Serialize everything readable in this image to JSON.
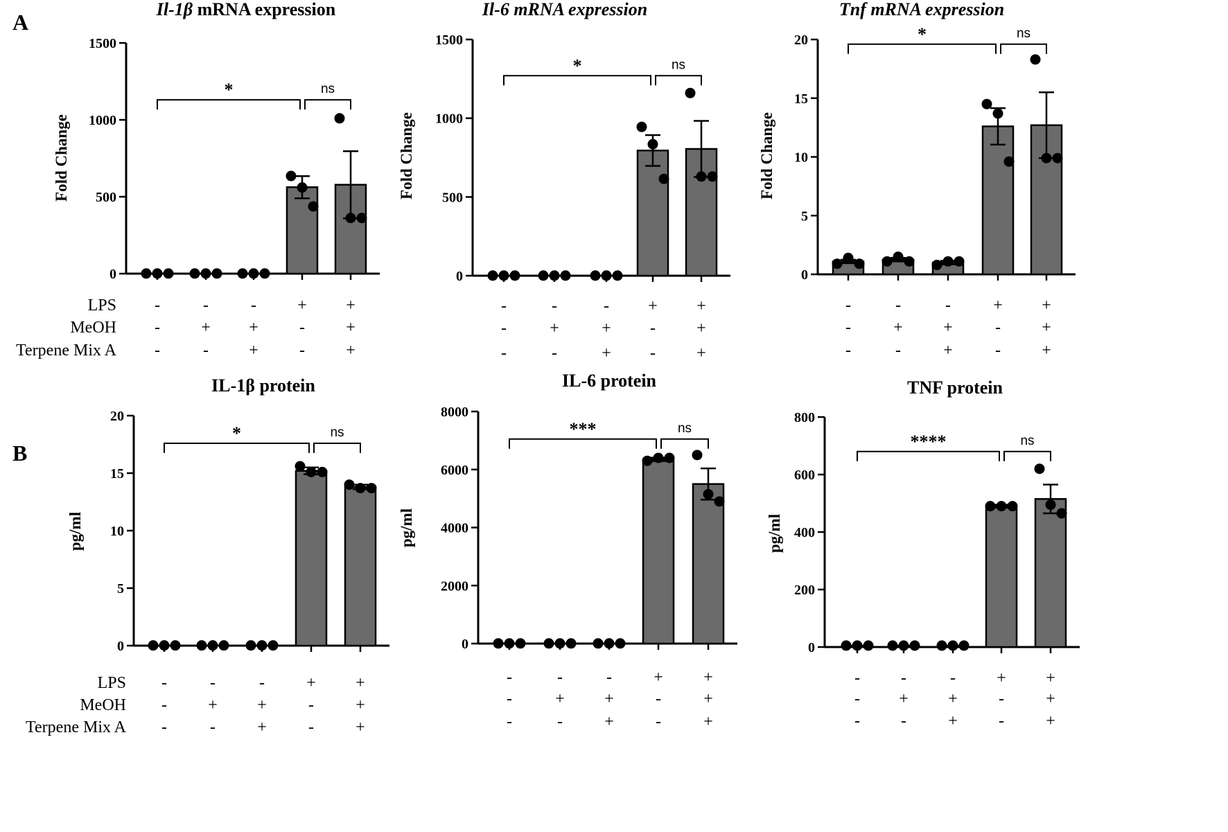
{
  "panel_labels": [
    "A",
    "B"
  ],
  "condition_labels": [
    "LPS",
    "MeOH",
    "Terpene Mix A"
  ],
  "condition_signs": [
    [
      "-",
      "-",
      "-",
      "+",
      "+"
    ],
    [
      "-",
      "+",
      "+",
      "-",
      "+"
    ],
    [
      "-",
      "-",
      "+",
      "-",
      "+"
    ]
  ],
  "chart_data": [
    {
      "type": "bar",
      "panel": "A",
      "title_parts": [
        {
          "text": "Il-1β",
          "italic": true
        },
        {
          "text": " mRNA expression",
          "italic": false
        }
      ],
      "ylabel": "Fold Change",
      "ylim": [
        0,
        1500
      ],
      "yticks": [
        0,
        500,
        1000,
        1500
      ],
      "categories": [
        "-/-/-",
        "-/+/-",
        "-/+/+",
        "+/-/-",
        "+/+/+"
      ],
      "values": [
        1,
        1,
        1,
        562,
        578
      ],
      "sem": [
        0,
        0,
        0,
        72,
        218
      ],
      "points": [
        [
          1,
          1,
          1
        ],
        [
          1,
          1,
          1
        ],
        [
          1,
          1,
          1
        ],
        [
          635,
          560,
          437
        ],
        [
          1010,
          362,
          362
        ]
      ],
      "significance": [
        {
          "from": 0,
          "to": 3,
          "label": "*",
          "level": 1130
        },
        {
          "from": 3,
          "to": 4,
          "label": "ns",
          "level": 1130
        }
      ]
    },
    {
      "type": "bar",
      "panel": "A",
      "title_parts": [
        {
          "text": "Il-6 mRNA expression",
          "italic": true
        }
      ],
      "ylabel": "Fold  Change",
      "ylim": [
        0,
        1500
      ],
      "yticks": [
        0,
        500,
        1000,
        1500
      ],
      "categories": [
        "-/-/-",
        "-/+/-",
        "-/+/+",
        "+/-/-",
        "+/+/+"
      ],
      "values": [
        1,
        1,
        1,
        795,
        805
      ],
      "sem": [
        0,
        0,
        0,
        98,
        178
      ],
      "points": [
        [
          1,
          1,
          1
        ],
        [
          1,
          1,
          1
        ],
        [
          1,
          1,
          1
        ],
        [
          945,
          835,
          615
        ],
        [
          1160,
          630,
          630
        ]
      ],
      "significance": [
        {
          "from": 0,
          "to": 3,
          "label": "*",
          "level": 1270
        },
        {
          "from": 3,
          "to": 4,
          "label": "ns",
          "level": 1270
        }
      ]
    },
    {
      "type": "bar",
      "panel": "A",
      "title_parts": [
        {
          "text": "Tnf",
          "italic": true
        },
        {
          "text": " mRNA expression",
          "italic": true
        }
      ],
      "ylabel": "Fold Change",
      "ylim": [
        0,
        20
      ],
      "yticks": [
        0,
        5,
        10,
        15,
        20
      ],
      "categories": [
        "-/-/-",
        "-/+/-",
        "-/+/+",
        "+/-/-",
        "+/+/+"
      ],
      "values": [
        1.1,
        1.25,
        1.0,
        12.6,
        12.7
      ],
      "sem": [
        0.15,
        0.15,
        0.15,
        1.55,
        2.8
      ],
      "points": [
        [
          0.9,
          1.4,
          0.9
        ],
        [
          1.1,
          1.5,
          1.1
        ],
        [
          0.8,
          1.1,
          1.1
        ],
        [
          14.5,
          13.7,
          9.6
        ],
        [
          18.3,
          9.9,
          9.9
        ]
      ],
      "significance": [
        {
          "from": 0,
          "to": 3,
          "label": "*",
          "level": 19.6
        },
        {
          "from": 3,
          "to": 4,
          "label": "ns",
          "level": 19.6
        }
      ]
    },
    {
      "type": "bar",
      "panel": "B",
      "title_parts": [
        {
          "text": "IL-1β protein",
          "italic": false
        }
      ],
      "ylabel": "pg/ml",
      "ylim": [
        0,
        20
      ],
      "yticks": [
        0,
        5,
        10,
        15,
        20
      ],
      "categories": [
        "-/-/-",
        "-/+/-",
        "-/+/+",
        "+/-/-",
        "+/+/+"
      ],
      "values": [
        0.02,
        0.02,
        0.02,
        15.2,
        13.8
      ],
      "sem": [
        0,
        0,
        0,
        0.3,
        0.2
      ],
      "points": [
        [
          0.02,
          0.02,
          0.02
        ],
        [
          0.02,
          0.02,
          0.02
        ],
        [
          0.02,
          0.02,
          0.02
        ],
        [
          15.6,
          15.1,
          15.1
        ],
        [
          14.0,
          13.7,
          13.7
        ]
      ],
      "significance": [
        {
          "from": 0,
          "to": 3,
          "label": "*",
          "level": 17.6
        },
        {
          "from": 3,
          "to": 4,
          "label": "ns",
          "level": 17.6
        }
      ]
    },
    {
      "type": "bar",
      "panel": "B",
      "title_parts": [
        {
          "text": "IL-6 protein",
          "italic": false
        }
      ],
      "ylabel": "pg/ml",
      "ylim": [
        0,
        8000
      ],
      "yticks": [
        0,
        2000,
        4000,
        6000,
        8000
      ],
      "categories": [
        "-/-/-",
        "-/+/-",
        "-/+/+",
        "+/-/-",
        "+/+/+"
      ],
      "values": [
        5,
        5,
        5,
        6350,
        5500
      ],
      "sem": [
        0,
        0,
        0,
        60,
        540
      ],
      "points": [
        [
          5,
          5,
          5
        ],
        [
          5,
          5,
          5
        ],
        [
          5,
          5,
          5
        ],
        [
          6300,
          6400,
          6400
        ],
        [
          6500,
          5150,
          4900
        ]
      ],
      "significance": [
        {
          "from": 0,
          "to": 3,
          "label": "***",
          "level": 7050
        },
        {
          "from": 3,
          "to": 4,
          "label": "ns",
          "level": 7050
        }
      ]
    },
    {
      "type": "bar",
      "panel": "B",
      "title_parts": [
        {
          "text": "TNF protein",
          "italic": false
        }
      ],
      "ylabel": "pg/ml",
      "ylim": [
        0,
        800
      ],
      "yticks": [
        0,
        200,
        400,
        600,
        800
      ],
      "categories": [
        "-/-/-",
        "-/+/-",
        "-/+/+",
        "+/-/-",
        "+/+/+"
      ],
      "values": [
        5,
        5,
        5,
        490,
        515
      ],
      "sem": [
        0,
        0,
        0,
        5,
        50
      ],
      "points": [
        [
          5,
          5,
          5
        ],
        [
          5,
          5,
          5
        ],
        [
          5,
          5,
          5
        ],
        [
          490,
          490,
          490
        ],
        [
          620,
          495,
          465
        ]
      ],
      "significance": [
        {
          "from": 0,
          "to": 3,
          "label": "****",
          "level": 680
        },
        {
          "from": 3,
          "to": 4,
          "label": "ns",
          "level": 680
        }
      ]
    }
  ]
}
